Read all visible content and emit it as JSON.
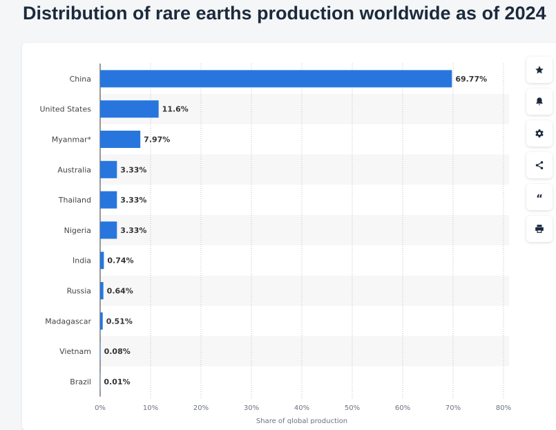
{
  "page": {
    "title": "Distribution of rare earths production worldwide as of 2024"
  },
  "side_toolbar": [
    {
      "name": "favorite-button",
      "icon": "star-icon"
    },
    {
      "name": "notification-button",
      "icon": "bell-icon"
    },
    {
      "name": "settings-button",
      "icon": "gear-icon"
    },
    {
      "name": "share-button",
      "icon": "share-icon"
    },
    {
      "name": "cite-button",
      "icon": "quote-icon",
      "glyph": "“"
    },
    {
      "name": "print-button",
      "icon": "printer-icon"
    }
  ],
  "chart_data": {
    "type": "bar",
    "orientation": "horizontal",
    "categories": [
      "China",
      "United States",
      "Myanmar*",
      "Australia",
      "Thailand",
      "Nigeria",
      "India",
      "Russia",
      "Madagascar",
      "Vietnam",
      "Brazil"
    ],
    "values": [
      69.77,
      11.6,
      7.97,
      3.33,
      3.33,
      3.33,
      0.74,
      0.64,
      0.51,
      0.08,
      0.01
    ],
    "data_labels": [
      "69.77%",
      "11.6%",
      "7.97%",
      "3.33%",
      "3.33%",
      "3.33%",
      "0.74%",
      "0.64%",
      "0.51%",
      "0.08%",
      "0.01%"
    ],
    "xlabel": "Share of global production",
    "xlim": [
      0,
      80
    ],
    "xticks": [
      0,
      10,
      20,
      30,
      40,
      50,
      60,
      70,
      80
    ],
    "xtick_labels": [
      "0%",
      "10%",
      "20%",
      "30%",
      "40%",
      "50%",
      "60%",
      "70%",
      "80%"
    ],
    "grid": "vertical-dotted",
    "legend": "none",
    "bar_color": "#2876dd",
    "stripe_color": "#f7f7f7"
  }
}
